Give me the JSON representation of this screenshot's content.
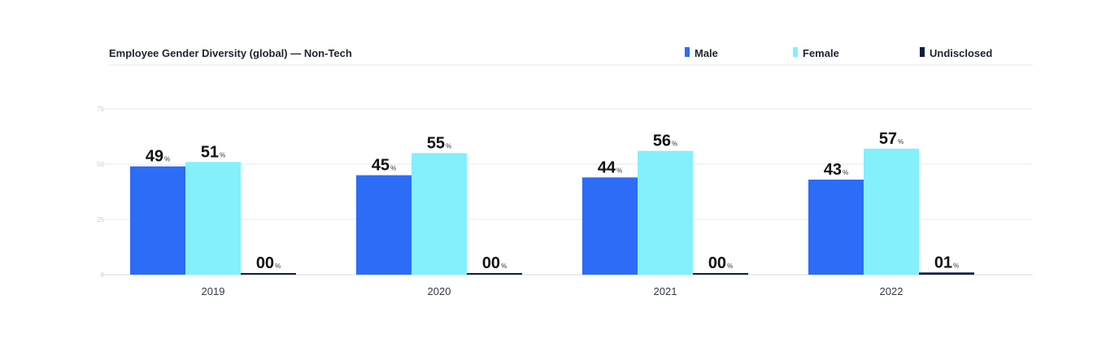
{
  "chart_data": {
    "type": "bar",
    "title": "Employee Gender Diversity (global) — Non-Tech",
    "categories": [
      "2019",
      "2020",
      "2021",
      "2022"
    ],
    "series": [
      {
        "name": "Male",
        "color": "#2c6cf6",
        "values": [
          49,
          45,
          44,
          43
        ],
        "labels": [
          "49",
          "45",
          "44",
          "43"
        ]
      },
      {
        "name": "Female",
        "color": "#83f0fb",
        "values": [
          51,
          55,
          56,
          57
        ],
        "labels": [
          "51",
          "55",
          "56",
          "57"
        ]
      },
      {
        "name": "Undisclosed",
        "color": "#0f1f44",
        "values": [
          0,
          0,
          0,
          1
        ],
        "labels": [
          "00",
          "00",
          "00",
          "01"
        ]
      }
    ],
    "value_suffix": "%",
    "yticks": [
      0,
      25,
      50,
      75
    ],
    "ytick_labels": [
      "0",
      "25",
      "50",
      "75"
    ],
    "ylim": [
      0,
      75
    ],
    "grid": true,
    "legend_position": "top-right",
    "xlabel": "",
    "ylabel": ""
  }
}
